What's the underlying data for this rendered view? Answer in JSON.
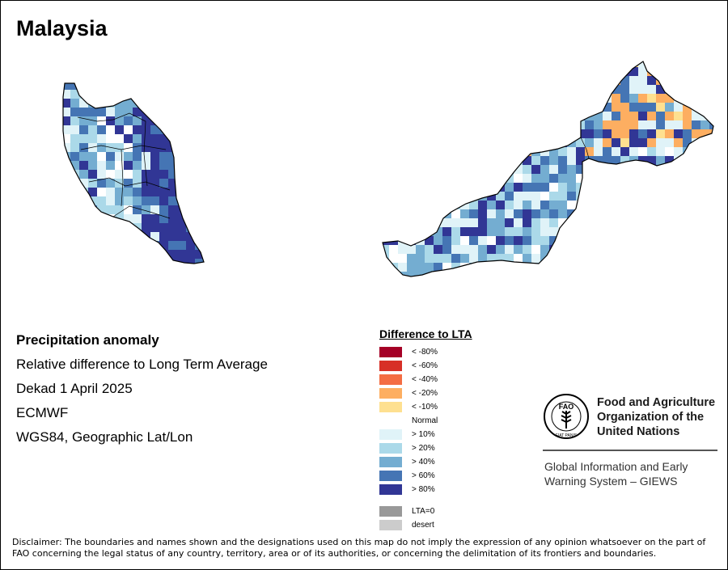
{
  "title": "Malaysia",
  "info_lines": [
    "Precipitation anomaly",
    "Relative difference to Long Term Average",
    "Dekad 1 April 2025",
    "ECMWF",
    "WGS84, Geographic Lat/Lon"
  ],
  "legend": {
    "title": "Difference to LTA",
    "dry_classes": [
      {
        "label": "< -80%",
        "color": "#a50026"
      },
      {
        "label": "< -60%",
        "color": "#d73027"
      },
      {
        "label": "< -40%",
        "color": "#f46d43"
      },
      {
        "label": "< -20%",
        "color": "#fdae61"
      },
      {
        "label": "< -10%",
        "color": "#fee090"
      }
    ],
    "normal_label": "Normal",
    "wet_classes": [
      {
        "label": "> 10%",
        "color": "#e0f3f8"
      },
      {
        "label": "> 20%",
        "color": "#abd9e9"
      },
      {
        "label": "> 40%",
        "color": "#74add1"
      },
      {
        "label": "> 60%",
        "color": "#4575b4"
      },
      {
        "label": "> 80%",
        "color": "#313695"
      }
    ],
    "extra_classes": [
      {
        "label": "LTA=0",
        "color": "#999999"
      },
      {
        "label": "desert",
        "color": "#cccccc"
      }
    ]
  },
  "fao": {
    "name_lines": [
      "Food and Agriculture",
      "Organization of the",
      "United Nations"
    ],
    "logo_text": "FAO",
    "logo_motto": "FIAT PANIS",
    "giews_lines": [
      "Global Information and Early",
      "Warning System – GIEWS"
    ]
  },
  "disclaimer": "Disclaimer: The boundaries and names shown and the designations used on this map do not imply the expression of any opinion whatsoever on the part of FAO concerning the legal status of any country, territory, area or of its authorities, or concerning the delimitation of its frontiers and boundaries."
}
